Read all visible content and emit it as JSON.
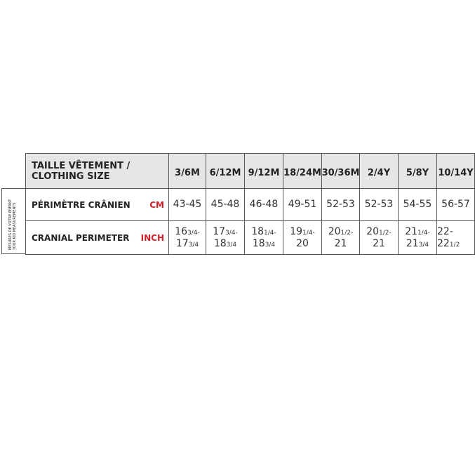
{
  "side_label": [
    "MESURES DE VOTRE ENFANT",
    "YOUR KID MEASUREMENTS"
  ],
  "header": {
    "label": [
      "TAILLE VÊTEMENT /",
      "CLOTHING SIZE"
    ],
    "sizes": [
      "3/6M",
      "6/12M",
      "9/12M",
      "18/24M",
      "30/36M",
      "2/4Y",
      "5/8Y",
      "10/14Y"
    ]
  },
  "rows": [
    {
      "label": "PÉRIMÈTRE CRÂNIEN",
      "unit": "CM",
      "cells": [
        "43-45",
        "45-48",
        "46-48",
        "49-51",
        "52-53",
        "52-53",
        "54-55",
        "56-57"
      ]
    },
    {
      "label": "CRANIAL PERIMETER",
      "unit": "INCH",
      "cells": [
        [
          {
            "whole": "16",
            "frac": "3/4-"
          },
          {
            "whole": "17",
            "frac": "3/4"
          }
        ],
        [
          {
            "whole": "17",
            "frac": "3/4-"
          },
          {
            "whole": "18",
            "frac": "3/4"
          }
        ],
        [
          {
            "whole": "18",
            "frac": "1/4-"
          },
          {
            "whole": "18",
            "frac": "3/4"
          }
        ],
        [
          {
            "whole": "19",
            "frac": "1/4-"
          },
          {
            "whole": "20"
          }
        ],
        [
          {
            "whole": "20",
            "frac": "1/2-"
          },
          {
            "whole": "21"
          }
        ],
        [
          {
            "whole": "20",
            "frac": "1/2-"
          },
          {
            "whole": "21"
          }
        ],
        [
          {
            "whole": "21",
            "frac": "1/4-"
          },
          {
            "whole": "21",
            "frac": "3/4"
          }
        ],
        [
          {
            "whole": "22-22",
            "frac": "1/2"
          }
        ]
      ]
    }
  ]
}
